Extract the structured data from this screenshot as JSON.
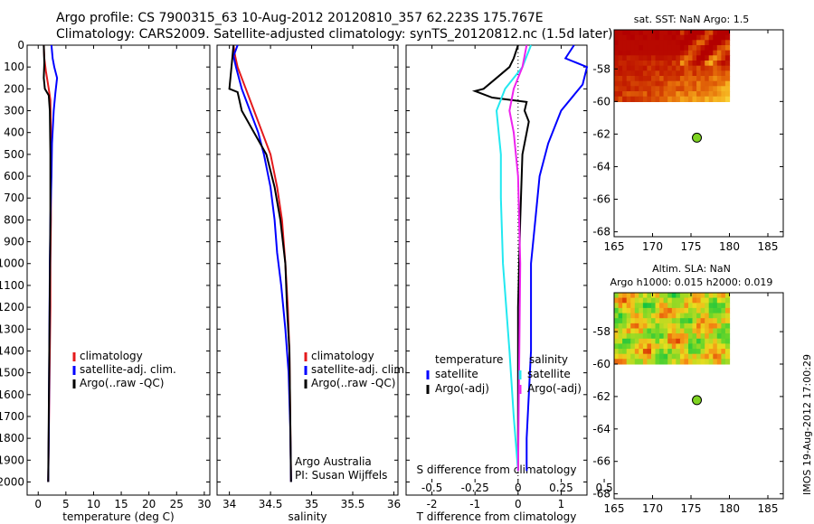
{
  "header": {
    "line1": "Argo profile: CS 7900315_63 10-Aug-2012 20120810_357 62.223S 175.767E",
    "line2": "Climatology: CARS2009. Satellite-adjusted climatology: synTS_20120812.nc (1.5d later)"
  },
  "stamp": "IMOS 19-Aug-2012 17:00:29",
  "colors": {
    "red": "#e41a1c",
    "blue": "#0000ff",
    "black": "#000000",
    "cyan": "#22e8f0",
    "magenta": "#ee22ee",
    "green": "#7ed321",
    "sst_hot": "#b30000"
  },
  "chart_data": [
    {
      "id": "temperature",
      "type": "line",
      "xlabel": "temperature (deg C)",
      "ylabel": "",
      "xlim": [
        -2,
        31
      ],
      "ylim": [
        2060,
        0
      ],
      "xticks": [
        0,
        5,
        10,
        15,
        20,
        25,
        30
      ],
      "yticks": [
        0,
        100,
        200,
        300,
        400,
        500,
        600,
        700,
        800,
        900,
        1000,
        1100,
        1200,
        1300,
        1400,
        1500,
        1600,
        1700,
        1800,
        1900,
        2000
      ],
      "legend": [
        "climatology",
        "satellite-adj. clim.",
        "Argo(..raw -QC)"
      ],
      "series": [
        {
          "name": "climatology",
          "color": "red",
          "x": [
            1.0,
            1.1,
            1.4,
            1.9,
            2.2,
            2.3,
            2.3,
            2.3,
            2.2,
            2.2,
            2.1,
            2.0,
            1.9,
            1.8
          ],
          "y": [
            0,
            60,
            120,
            200,
            250,
            400,
            600,
            800,
            1000,
            1200,
            1400,
            1600,
            1800,
            2000
          ]
        },
        {
          "name": "satellite-adj. clim.",
          "color": "blue",
          "x": [
            2.4,
            2.6,
            2.9,
            3.4,
            3.1,
            2.8,
            2.5,
            2.4,
            2.2,
            2.1,
            2.0,
            1.9,
            1.8
          ],
          "y": [
            0,
            60,
            100,
            150,
            220,
            300,
            450,
            600,
            800,
            1000,
            1400,
            1800,
            2000
          ]
        },
        {
          "name": "Argo(..raw -QC)",
          "color": "black",
          "x": [
            1.0,
            1.1,
            1.0,
            1.2,
            1.9,
            2.1,
            2.2,
            2.2,
            2.1,
            2.0,
            1.9,
            1.8
          ],
          "y": [
            0,
            80,
            150,
            200,
            230,
            300,
            500,
            800,
            1100,
            1400,
            1700,
            2000
          ]
        }
      ]
    },
    {
      "id": "salinity",
      "type": "line",
      "xlabel": "salinity",
      "ylabel": "",
      "xlim": [
        33.85,
        36.05
      ],
      "ylim": [
        2060,
        0
      ],
      "xticks": [
        34,
        34.5,
        35,
        35.5,
        36
      ],
      "legend": [
        "climatology",
        "satellite-adj. clim.",
        "Argo(..raw -QC)"
      ],
      "annotation": [
        "Argo Australia",
        "PI: Susan Wijffels"
      ],
      "series": [
        {
          "name": "climatology",
          "color": "red",
          "x": [
            34.05,
            34.07,
            34.1,
            34.2,
            34.3,
            34.4,
            34.5,
            34.58,
            34.64,
            34.68,
            34.71,
            34.73,
            34.74,
            34.75
          ],
          "y": [
            0,
            50,
            100,
            200,
            300,
            400,
            500,
            650,
            800,
            1000,
            1200,
            1400,
            1700,
            2000
          ]
        },
        {
          "name": "satellite-adj. clim.",
          "color": "blue",
          "x": [
            34.1,
            34.05,
            34.08,
            34.15,
            34.25,
            34.35,
            34.42,
            34.5,
            34.55,
            34.58,
            34.63,
            34.68,
            34.72,
            34.74,
            34.75
          ],
          "y": [
            0,
            50,
            100,
            200,
            300,
            400,
            500,
            650,
            800,
            950,
            1100,
            1300,
            1500,
            1750,
            2000
          ]
        },
        {
          "name": "Argo(..raw -QC)",
          "color": "black",
          "x": [
            34.05,
            34.03,
            34.0,
            34.1,
            34.15,
            34.3,
            34.45,
            34.55,
            34.62,
            34.68,
            34.7,
            34.73,
            34.74,
            34.75
          ],
          "y": [
            0,
            80,
            200,
            215,
            300,
            400,
            500,
            650,
            800,
            1000,
            1200,
            1400,
            1700,
            2000
          ]
        }
      ]
    },
    {
      "id": "difference",
      "type": "line",
      "xlabel": "T difference from climatology",
      "x2label": "S difference from climatology",
      "xlim": [
        -2.6,
        1.6
      ],
      "ylim": [
        2060,
        0
      ],
      "xticks": [
        -2,
        -1,
        0,
        1
      ],
      "xticks_S": [
        -0.5,
        -0.25,
        0,
        0.25,
        0.5
      ],
      "legend_titles": [
        "temperature",
        "salinity"
      ],
      "legend_temperature": [
        "satellite",
        "Argo(-adj)"
      ],
      "legend_salinity": [
        "satellite",
        "Argo(-adj)"
      ],
      "series": [
        {
          "name": "T satellite",
          "color": "blue",
          "x": [
            1.3,
            1.1,
            1.8,
            1.5,
            1.0,
            0.7,
            0.5,
            0.4,
            0.3,
            0.3,
            0.2,
            0.2
          ],
          "y": [
            0,
            60,
            100,
            180,
            300,
            450,
            600,
            800,
            1000,
            1400,
            1800,
            1950
          ]
        },
        {
          "name": "T Argo(-adj)",
          "color": "black",
          "x": [
            0.0,
            -0.1,
            -0.2,
            -0.5,
            -0.8,
            -1.0,
            -0.6,
            0.2,
            0.15,
            0.25,
            0.1,
            0.05,
            0.0,
            0.0
          ],
          "y": [
            0,
            60,
            100,
            150,
            200,
            210,
            240,
            260,
            300,
            350,
            500,
            800,
            1200,
            1950
          ]
        },
        {
          "name": "S satellite",
          "color": "cyan",
          "x": [
            0.3,
            0.1,
            -0.3,
            -0.5,
            -0.4,
            -0.4,
            -0.35,
            -0.2,
            -0.1,
            0.0
          ],
          "y": [
            0,
            100,
            200,
            300,
            500,
            700,
            1000,
            1400,
            1700,
            1950
          ]
        },
        {
          "name": "S Argo(-adj)",
          "color": "magenta",
          "x": [
            0.2,
            0.1,
            -0.1,
            -0.2,
            -0.1,
            0.0,
            0.05,
            0.0
          ],
          "y": [
            0,
            100,
            200,
            300,
            400,
            600,
            1000,
            1950
          ]
        }
      ]
    }
  ],
  "maps": [
    {
      "title_lines": [
        "sat. SST: NaN Argo: 1.5"
      ],
      "xlim": [
        165,
        187
      ],
      "ylim": [
        -68.3,
        -55.6
      ],
      "xticks": [
        165,
        170,
        175,
        180,
        185
      ],
      "yticks": [
        -58,
        -60,
        -62,
        -64,
        -66,
        -68
      ],
      "data_extent": {
        "lon": [
          165,
          180
        ],
        "lat": [
          -60,
          -55.6
        ]
      },
      "palette": "sst",
      "marker": {
        "lon": 175.767,
        "lat": -62.223
      }
    },
    {
      "title_lines": [
        "Altim. SLA: NaN",
        "Argo h1000: 0.015 h2000: 0.019"
      ],
      "xlim": [
        165,
        187
      ],
      "ylim": [
        -68.3,
        -55.6
      ],
      "xticks": [
        165,
        170,
        175,
        180,
        185
      ],
      "yticks": [
        -58,
        -60,
        -62,
        -64,
        -66,
        -68
      ],
      "data_extent": {
        "lon": [
          165,
          180
        ],
        "lat": [
          -60,
          -55.6
        ]
      },
      "palette": "sla",
      "marker": {
        "lon": 175.767,
        "lat": -62.223
      }
    }
  ]
}
